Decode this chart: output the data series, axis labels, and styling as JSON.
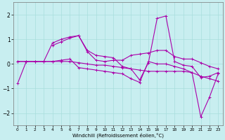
{
  "xlabel": "Windchill (Refroidissement éolien,°C)",
  "x": [
    0,
    1,
    2,
    3,
    4,
    5,
    6,
    7,
    8,
    9,
    10,
    11,
    12,
    13,
    14,
    15,
    16,
    17,
    18,
    19,
    20,
    21,
    22,
    23
  ],
  "line1": [
    -0.8,
    0.1,
    0.1,
    0.1,
    0.85,
    1.0,
    1.1,
    1.15,
    0.55,
    0.35,
    0.3,
    0.25,
    -0.1,
    -0.2,
    -0.65,
    0.05,
    1.85,
    1.95,
    0.1,
    -0.05,
    -0.1,
    -0.55,
    -0.5,
    -0.35
  ],
  "line2": [
    null,
    null,
    null,
    null,
    0.75,
    0.9,
    1.05,
    1.15,
    0.5,
    0.15,
    0.1,
    0.15,
    0.15,
    0.35,
    0.4,
    0.45,
    0.55,
    0.55,
    0.3,
    0.2,
    0.2,
    0.05,
    -0.1,
    -0.2
  ],
  "line3": [
    0.1,
    0.1,
    0.1,
    0.1,
    0.1,
    0.1,
    0.1,
    0.05,
    0.0,
    -0.05,
    -0.05,
    -0.1,
    -0.15,
    -0.2,
    -0.25,
    -0.3,
    -0.3,
    -0.3,
    -0.3,
    -0.3,
    -0.35,
    -0.5,
    -0.6,
    -0.7
  ],
  "line4": [
    0.1,
    0.1,
    0.1,
    0.1,
    0.1,
    0.15,
    0.2,
    -0.15,
    -0.2,
    -0.25,
    -0.3,
    -0.35,
    -0.4,
    -0.6,
    -0.75,
    0.1,
    0.0,
    0.0,
    -0.1,
    -0.2,
    -0.35,
    -2.15,
    -1.35,
    -0.4
  ],
  "ylim": [
    -2.5,
    2.5
  ],
  "xlim": [
    -0.5,
    23.5
  ],
  "yticks": [
    -2,
    -1,
    0,
    1,
    2
  ],
  "xticks": [
    0,
    1,
    2,
    3,
    4,
    5,
    6,
    7,
    8,
    9,
    10,
    11,
    12,
    13,
    14,
    15,
    16,
    17,
    18,
    19,
    20,
    21,
    22,
    23
  ],
  "line_color": "#AA00AA",
  "bg_color": "#C8EEF0",
  "grid_color": "#A8DDDD",
  "markersize": 3,
  "linewidth": 0.8
}
